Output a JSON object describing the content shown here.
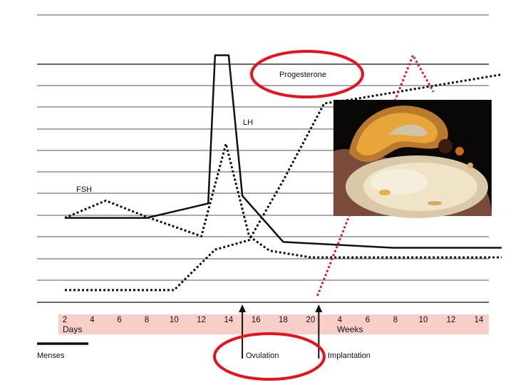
{
  "chart_data": {
    "type": "line",
    "title": "",
    "xlabel": "",
    "ylabel": "",
    "grid": true,
    "x_axis": {
      "days_ticks": [
        "2",
        "4",
        "6",
        "8",
        "10",
        "12",
        "14",
        "16",
        "18",
        "20"
      ],
      "days_label": "Days",
      "weeks_ticks": [
        "4",
        "6",
        "8",
        "10",
        "12",
        "14"
      ],
      "weeks_label": "Weeks"
    },
    "series": [
      {
        "name": "FSH",
        "style": "dotted",
        "color": "#111111",
        "points": [
          [
            2,
            0.405
          ],
          [
            5,
            0.495
          ],
          [
            8,
            0.41
          ],
          [
            12,
            0.31
          ],
          [
            13.8,
            0.79
          ],
          [
            15.5,
            0.31
          ],
          [
            17,
            0.235
          ],
          [
            20,
            0.2
          ],
          [
            22,
            0.2
          ],
          [
            24,
            0.2
          ],
          [
            26,
            0.2
          ],
          [
            28,
            0.2
          ],
          [
            30,
            0.2
          ],
          [
            32,
            0.2
          ],
          [
            34,
            0.2
          ]
        ]
      },
      {
        "name": "LH",
        "style": "solid",
        "color": "#111111",
        "points": [
          [
            2,
            0.405
          ],
          [
            8,
            0.405
          ],
          [
            12.5,
            0.48
          ],
          [
            13,
            1.25
          ],
          [
            14,
            1.25
          ],
          [
            15,
            0.52
          ],
          [
            18,
            0.28
          ],
          [
            26,
            0.25
          ],
          [
            34,
            0.25
          ]
        ]
      },
      {
        "name": "Progesterone",
        "style": "dotted",
        "color": "#111111",
        "points": [
          [
            2,
            0.03
          ],
          [
            10,
            0.03
          ],
          [
            11,
            0.1
          ],
          [
            13,
            0.24
          ],
          [
            15.5,
            0.29
          ],
          [
            18,
            0.6
          ],
          [
            21,
            1.0
          ],
          [
            23,
            1.02
          ],
          [
            34,
            1.15
          ]
        ]
      },
      {
        "name": "",
        "style": "dotted",
        "color": "#c8243a",
        "points": [
          [
            20.5,
            0
          ],
          [
            27.5,
            1.25
          ],
          [
            29,
            1.06
          ]
        ]
      }
    ],
    "annotations": {
      "fsh": "FSH",
      "lh": "LH",
      "progesterone": "Progesterone",
      "menses": "Menses",
      "ovulation": "Ovulation",
      "implantation": "Implantation"
    },
    "arrow_days": {
      "ovulation": 15,
      "implantation": 20.6
    },
    "menses_range": [
      0,
      3
    ],
    "circle_color": "#e8121c",
    "axis_band_color": "#f7cfc8",
    "photo": {
      "description_icon": "ovary-corpus-luteum-photo-icon"
    }
  }
}
